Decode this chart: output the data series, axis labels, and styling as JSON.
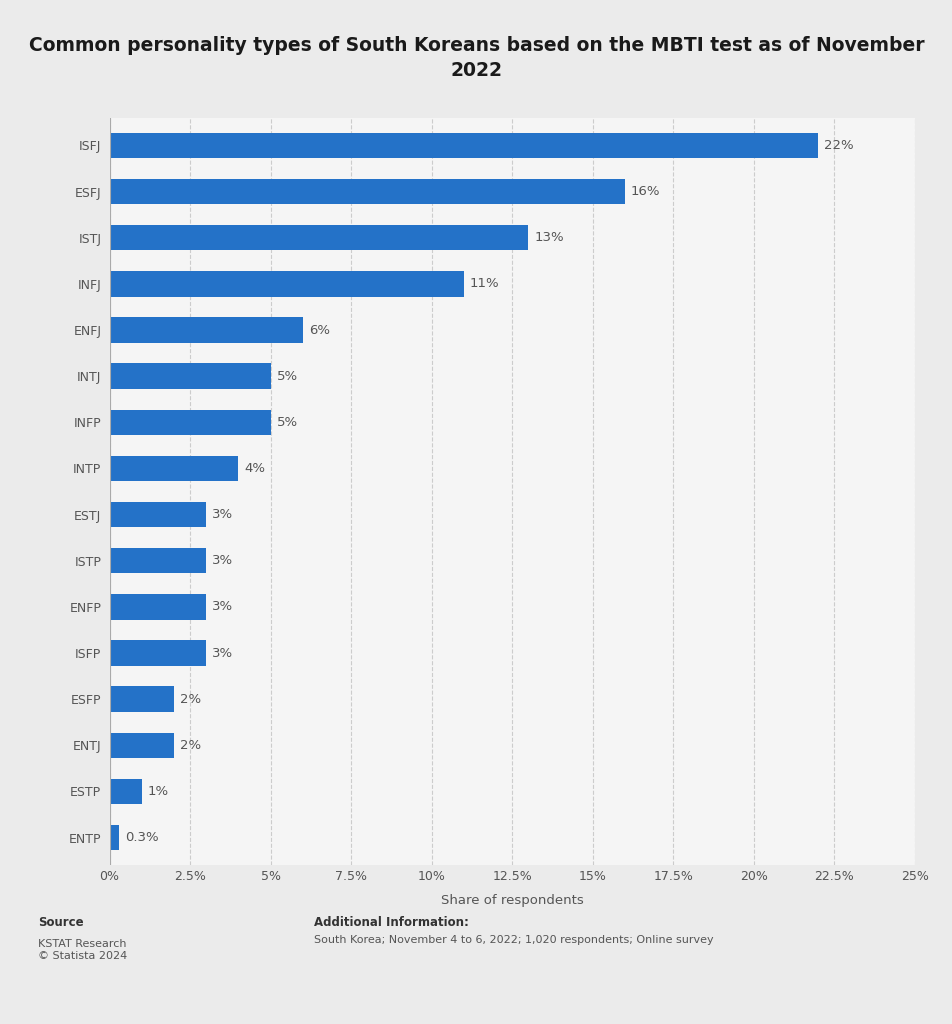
{
  "title": "Common personality types of South Koreans based on the MBTI test as of November\n2022",
  "categories": [
    "ISFJ",
    "ESFJ",
    "ISTJ",
    "INFJ",
    "ENFJ",
    "INTJ",
    "INFP",
    "INTP",
    "ESTJ",
    "ISTP",
    "ENFP",
    "ISFP",
    "ESFP",
    "ENTJ",
    "ESTP",
    "ENTP"
  ],
  "values": [
    22,
    16,
    13,
    11,
    6,
    5,
    5,
    4,
    3,
    3,
    3,
    3,
    2,
    2,
    1,
    0.3
  ],
  "labels": [
    "22%",
    "16%",
    "13%",
    "11%",
    "6%",
    "5%",
    "5%",
    "4%",
    "3%",
    "3%",
    "3%",
    "3%",
    "2%",
    "2%",
    "1%",
    "0.3%"
  ],
  "bar_color": "#2472c8",
  "background_color": "#ebebeb",
  "plot_background_color": "#f5f5f5",
  "xlabel": "Share of respondents",
  "xlim": [
    0,
    25
  ],
  "xticks": [
    0,
    2.5,
    5,
    7.5,
    10,
    12.5,
    15,
    17.5,
    20,
    22.5,
    25
  ],
  "xtick_labels": [
    "0%",
    "2.5%",
    "5%",
    "7.5%",
    "10%",
    "12.5%",
    "15%",
    "17.5%",
    "20%",
    "22.5%",
    "25%"
  ],
  "source_label": "Source",
  "source_text": "KSTAT Research\n© Statista 2024",
  "additional_info_label": "Additional Information:",
  "additional_info_text": "South Korea; November 4 to 6, 2022; 1,020 respondents; Online survey",
  "title_fontsize": 13.5,
  "label_fontsize": 9.5,
  "tick_fontsize": 9,
  "xlabel_fontsize": 9.5
}
